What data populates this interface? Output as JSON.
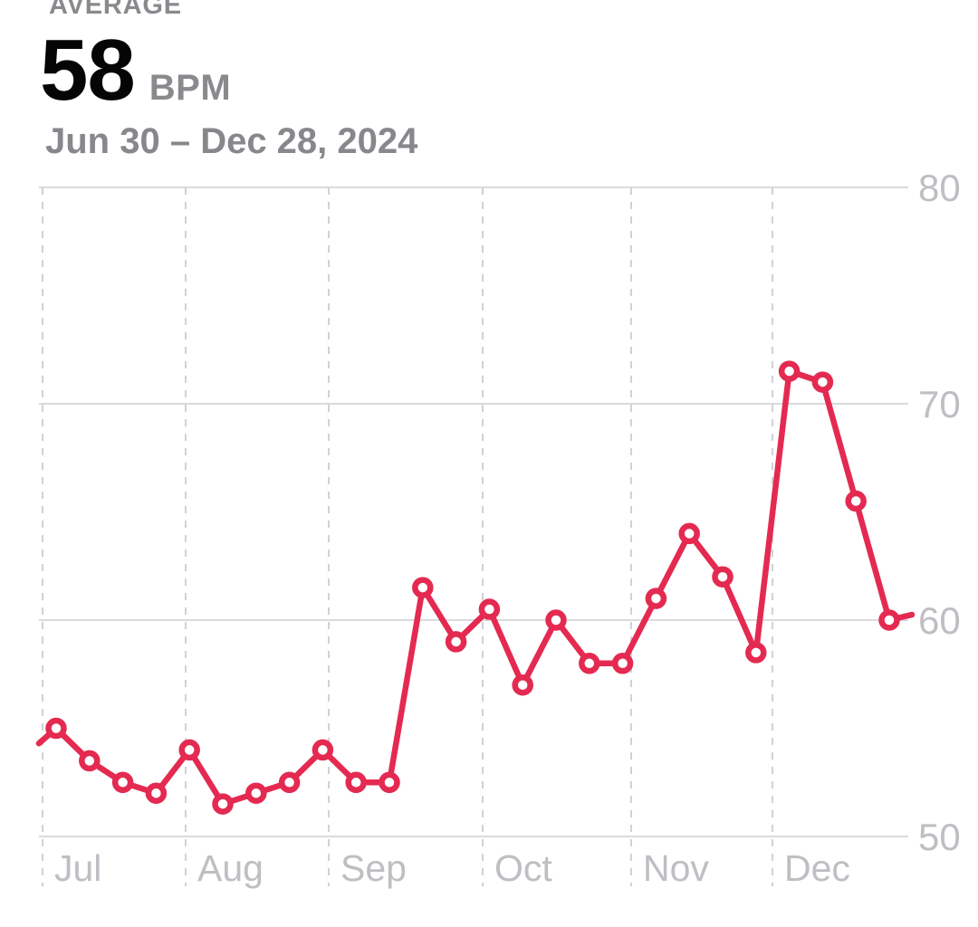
{
  "header": {
    "metric_type": "AVERAGE",
    "value": "58",
    "unit": "BPM",
    "date_range": "Jun 30 – Dec 28, 2024"
  },
  "colors": {
    "accent_line": "#E42A51",
    "marker_fill": "#ffffff",
    "axis_label": "#BEBEC3",
    "gridline_solid": "#DADADF",
    "gridline_dashed": "#D1D1D6",
    "header_gray": "#8A8A8E",
    "value_black": "#050505"
  },
  "chart_data": {
    "type": "line",
    "unit": "BPM",
    "cadence": "weekly",
    "x_month_labels": [
      "Jul",
      "Aug",
      "Sep",
      "Oct",
      "Nov",
      "Dec"
    ],
    "y_ticks": [
      80,
      70,
      60,
      50
    ],
    "ylim": [
      50,
      80
    ],
    "values": [
      55,
      53.5,
      52.5,
      52,
      54,
      51.5,
      52,
      52.5,
      54,
      52.5,
      52.5,
      61.5,
      59,
      60.5,
      57,
      60,
      58,
      58,
      61,
      64,
      62,
      58.5,
      71.5,
      71,
      65.5,
      60
    ],
    "leading_edge_value": 54.3,
    "trailing_stub": true,
    "grid": "horizontal solid lines at y ticks, vertical dashed lines at month starts",
    "legend_position": "none",
    "y_axis_side": "right"
  }
}
